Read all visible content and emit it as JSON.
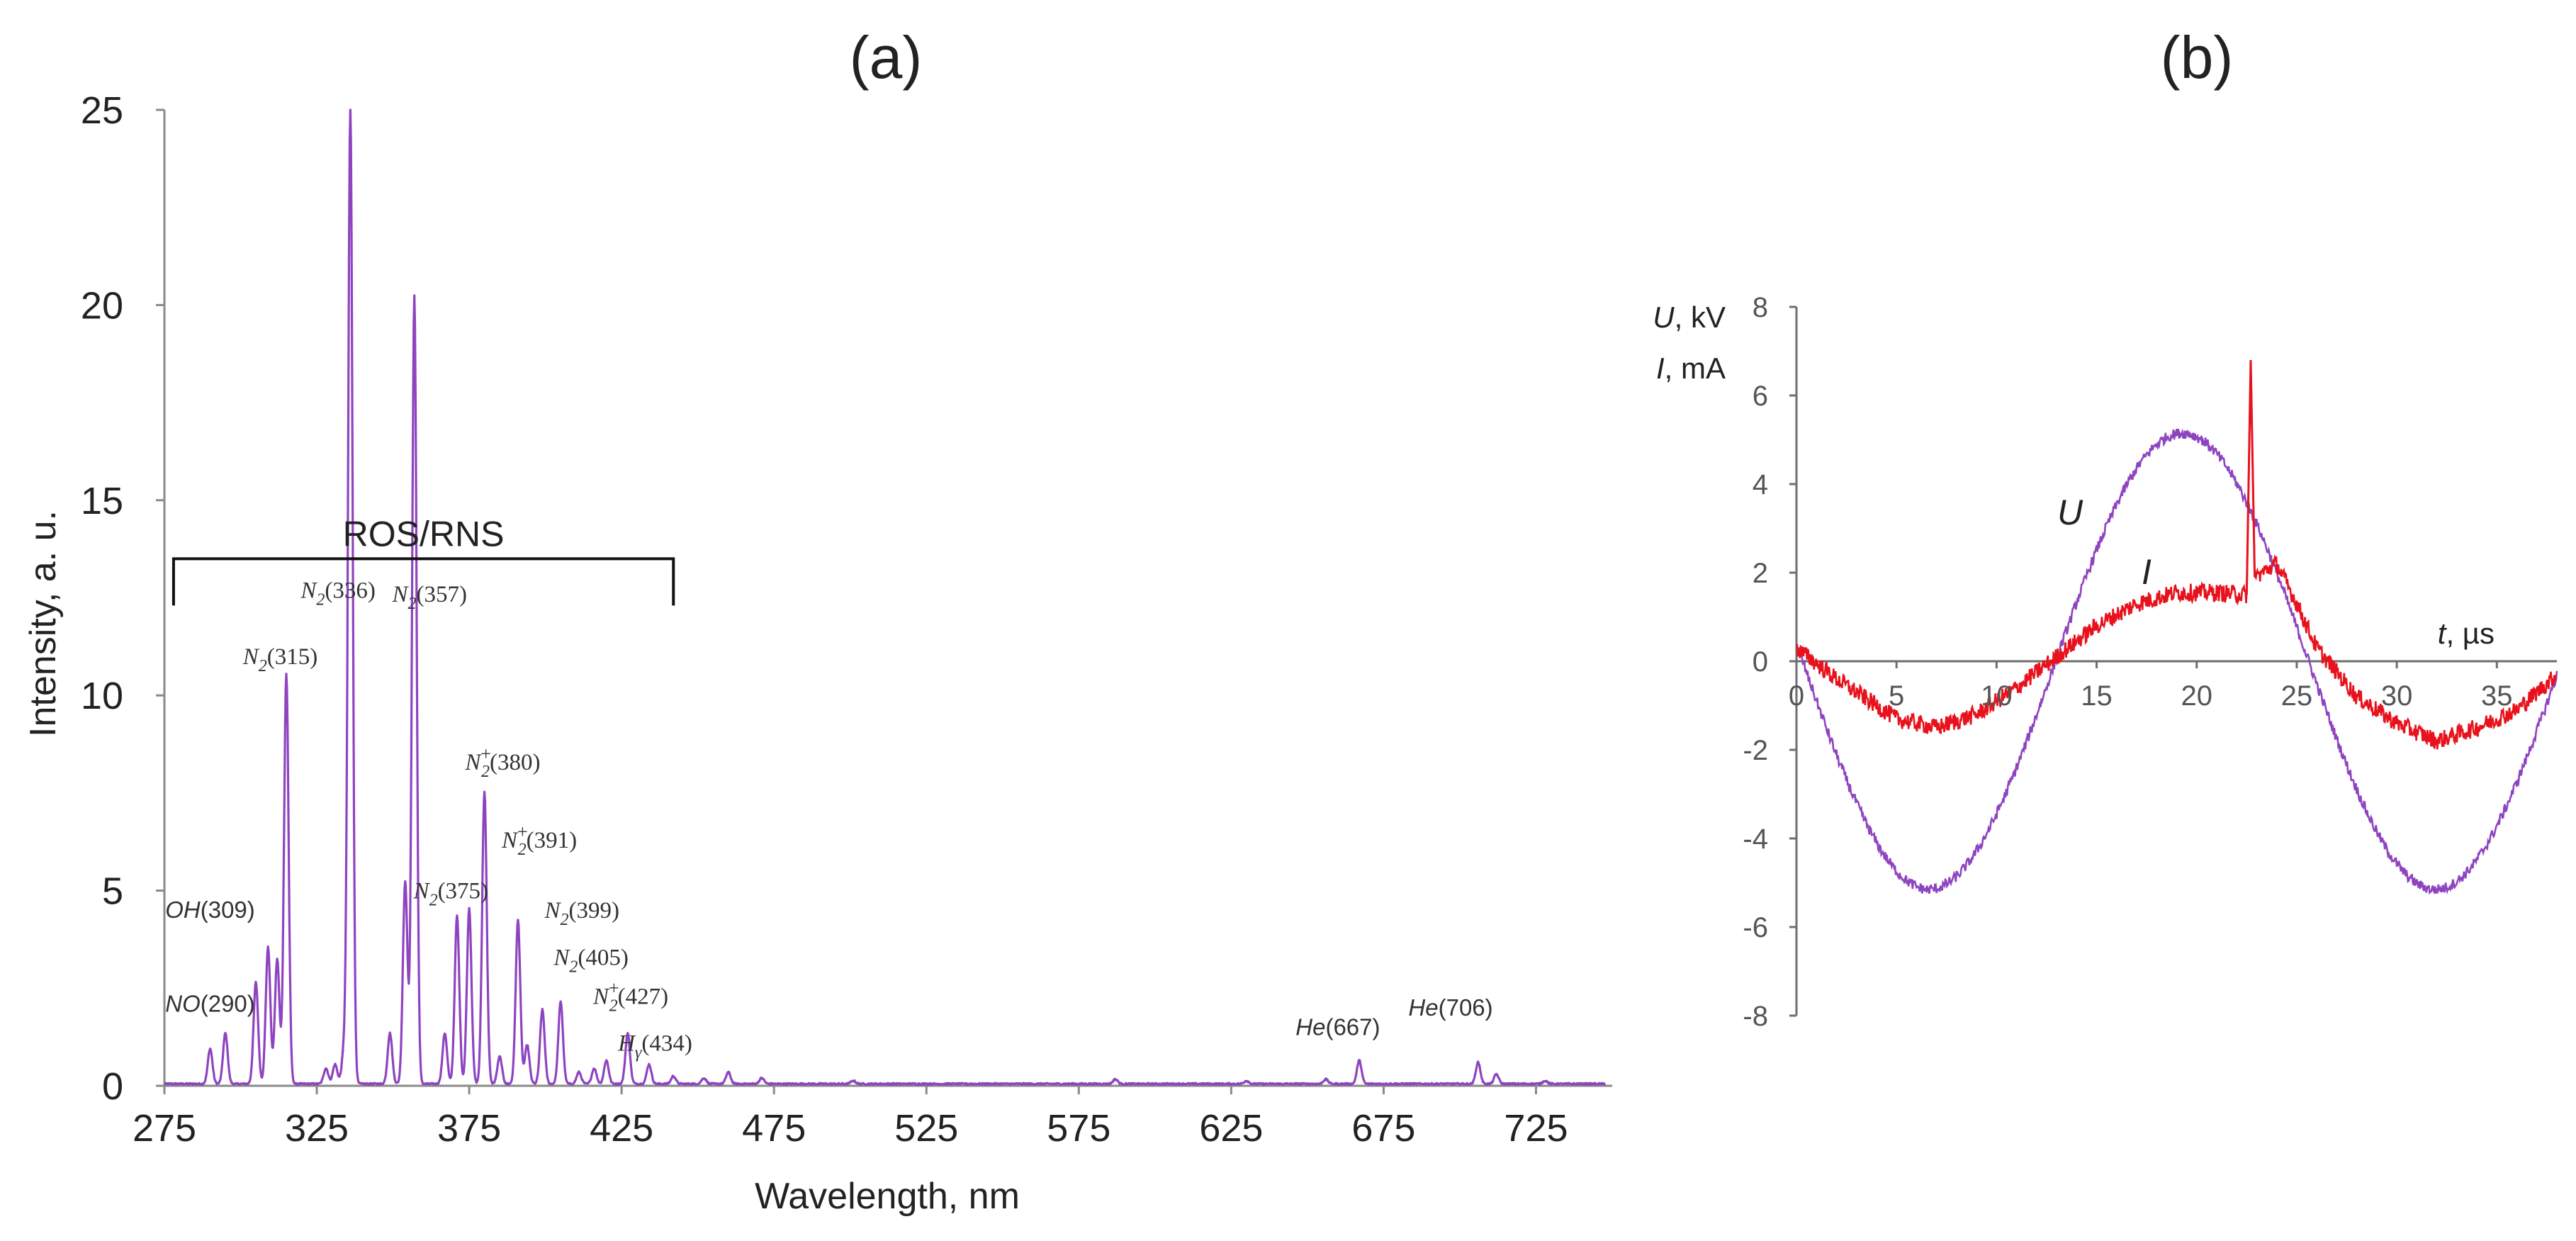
{
  "panel_labels": {
    "a": "(a)",
    "b": "(b)"
  },
  "chart_data": [
    {
      "id": "a",
      "type": "line",
      "title": "(a)",
      "xlabel": "Wavelength, nm",
      "ylabel": "Intensity, a. u.",
      "xlim": [
        275,
        750
      ],
      "ylim": [
        0,
        25
      ],
      "x_ticks": [
        "275",
        "325",
        "375",
        "425",
        "475",
        "525",
        "575",
        "625",
        "675",
        "725"
      ],
      "y_ticks": [
        "0",
        "5",
        "10",
        "15",
        "20",
        "25"
      ],
      "line_color": "#8e44c0",
      "peaks": [
        {
          "x": 290,
          "y": 0.9
        },
        {
          "x": 295,
          "y": 1.3
        },
        {
          "x": 305,
          "y": 2.6
        },
        {
          "x": 309,
          "y": 3.5
        },
        {
          "x": 312,
          "y": 3.2
        },
        {
          "x": 315,
          "y": 10.5
        },
        {
          "x": 328,
          "y": 0.4
        },
        {
          "x": 331,
          "y": 0.5
        },
        {
          "x": 334,
          "y": 0.9
        },
        {
          "x": 336,
          "y": 25.0
        },
        {
          "x": 349,
          "y": 1.3
        },
        {
          "x": 354,
          "y": 5.2
        },
        {
          "x": 357,
          "y": 20.2
        },
        {
          "x": 367,
          "y": 1.3
        },
        {
          "x": 371,
          "y": 4.3
        },
        {
          "x": 375,
          "y": 4.5
        },
        {
          "x": 380,
          "y": 7.5
        },
        {
          "x": 385,
          "y": 0.7
        },
        {
          "x": 391,
          "y": 4.2
        },
        {
          "x": 394,
          "y": 1.0
        },
        {
          "x": 399,
          "y": 1.9
        },
        {
          "x": 405,
          "y": 2.1
        },
        {
          "x": 411,
          "y": 0.3
        },
        {
          "x": 416,
          "y": 0.4
        },
        {
          "x": 420,
          "y": 0.6
        },
        {
          "x": 427,
          "y": 1.3
        },
        {
          "x": 434,
          "y": 0.5
        },
        {
          "x": 442,
          "y": 0.2
        },
        {
          "x": 452,
          "y": 0.15
        },
        {
          "x": 460,
          "y": 0.3
        },
        {
          "x": 471,
          "y": 0.15
        },
        {
          "x": 501,
          "y": 0.08
        },
        {
          "x": 587,
          "y": 0.12
        },
        {
          "x": 630,
          "y": 0.08
        },
        {
          "x": 656,
          "y": 0.12
        },
        {
          "x": 667,
          "y": 0.6
        },
        {
          "x": 706,
          "y": 0.55
        },
        {
          "x": 712,
          "y": 0.25
        },
        {
          "x": 728,
          "y": 0.08
        }
      ],
      "bracket_label": "ROS/RNS",
      "bracket_range": [
        278,
        442
      ],
      "bracket_level": 13.5,
      "annotations": [
        {
          "species": "NO",
          "sub": "",
          "sup": "",
          "wl": "(290)",
          "x": 290,
          "y": 1.9,
          "italic_sans": true
        },
        {
          "species": "OH",
          "sub": "",
          "sup": "",
          "wl": "(309)",
          "x": 290,
          "y": 4.3,
          "italic_sans": true
        },
        {
          "species": "N",
          "sub": "2",
          "sup": "",
          "wl": "(315)",
          "x": 313,
          "y": 10.8
        },
        {
          "species": "N",
          "sub": "2",
          "sup": "",
          "wl": "(336)",
          "x": 332,
          "y": 12.5
        },
        {
          "species": "N",
          "sub": "2",
          "sup": "",
          "wl": "(357)",
          "x": 362,
          "y": 12.4
        },
        {
          "species": "N",
          "sub": "2",
          "sup": "+",
          "wl": "(380)",
          "x": 386,
          "y": 8.1
        },
        {
          "species": "N",
          "sub": "2",
          "sup": "+",
          "wl": "(391)",
          "x": 398,
          "y": 6.1
        },
        {
          "species": "N",
          "sub": "2",
          "sup": "",
          "wl": "(375)",
          "x": 369,
          "y": 4.8
        },
        {
          "species": "N",
          "sub": "2",
          "sup": "",
          "wl": "(399)",
          "x": 412,
          "y": 4.3
        },
        {
          "species": "N",
          "sub": "2",
          "sup": "",
          "wl": "(405)",
          "x": 415,
          "y": 3.1
        },
        {
          "species": "N",
          "sub": "2",
          "sup": "+",
          "wl": "(427)",
          "x": 428,
          "y": 2.1
        },
        {
          "species": "H",
          "sub": "γ",
          "sup": "",
          "wl": "(434)",
          "x": 436,
          "y": 0.9
        },
        {
          "species": "He",
          "sub": "",
          "sup": "",
          "wl": "(667)",
          "x": 660,
          "y": 1.3,
          "italic_sans": true
        },
        {
          "species": "He",
          "sub": "",
          "sup": "",
          "wl": "(706)",
          "x": 697,
          "y": 1.8,
          "italic_sans": true
        }
      ]
    },
    {
      "id": "b",
      "type": "line",
      "title": "(b)",
      "xlabel_var": "t",
      "xlabel_unit": ", µs",
      "ylabel_lines": [
        {
          "var": "U",
          "unit": ", kV"
        },
        {
          "var": "I",
          "unit": ", mA"
        }
      ],
      "xlim": [
        0,
        38
      ],
      "ylim": [
        -8,
        8
      ],
      "x_ticks": [
        "0",
        "5",
        "10",
        "15",
        "20",
        "25",
        "30",
        "35"
      ],
      "y_ticks": [
        "8",
        "6",
        "4",
        "2",
        "0",
        "-2",
        "-4",
        "-6",
        "-8"
      ],
      "series": [
        {
          "name": "U",
          "color": "#8e44c0",
          "period": 25.3,
          "amplitude": 5.15,
          "phase_zero": 0.3,
          "noise": 0.12
        },
        {
          "name": "I",
          "color": "#e8121d",
          "noise": 0.2,
          "points": [
            [
              0,
              0.3
            ],
            [
              2,
              -0.4
            ],
            [
              5,
              -1.3
            ],
            [
              7,
              -1.5
            ],
            [
              9,
              -1.2
            ],
            [
              11,
              -0.6
            ],
            [
              13,
              0.1
            ],
            [
              15,
              0.8
            ],
            [
              17,
              1.3
            ],
            [
              19,
              1.55
            ],
            [
              21,
              1.55
            ],
            [
              22.5,
              1.5
            ],
            [
              22.7,
              6.8
            ],
            [
              22.9,
              1.9
            ],
            [
              24,
              2.2
            ],
            [
              25,
              1.3
            ],
            [
              26,
              0.3
            ],
            [
              28,
              -0.8
            ],
            [
              30,
              -1.4
            ],
            [
              32,
              -1.8
            ],
            [
              34,
              -1.5
            ],
            [
              36,
              -1.1
            ],
            [
              38,
              -0.3
            ]
          ]
        }
      ]
    }
  ]
}
